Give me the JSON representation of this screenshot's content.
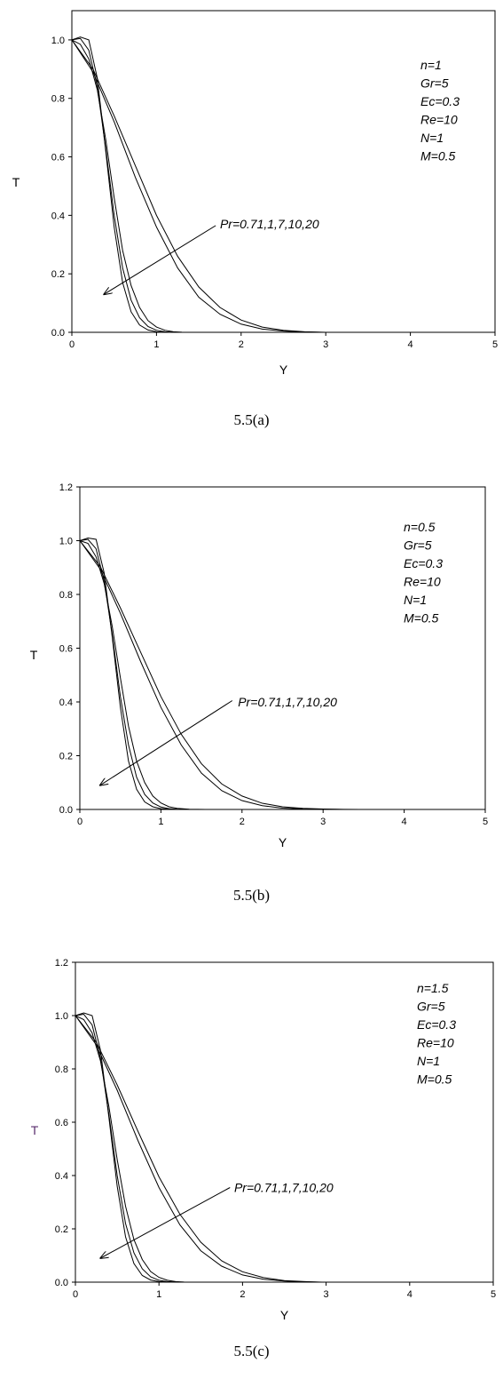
{
  "chart_data": [
    {
      "type": "line",
      "caption": "5.5(a)",
      "xlabel": "Y",
      "ylabel": "T",
      "xlim": [
        0,
        5
      ],
      "ylim": [
        0,
        1.1
      ],
      "xticks": [
        "0",
        "1",
        "2",
        "3",
        "4",
        "5"
      ],
      "yticks": [
        "0.0",
        "0.2",
        "0.4",
        "0.6",
        "0.8",
        "1.0"
      ],
      "ytick_values": [
        0,
        0.2,
        0.4,
        0.6,
        0.8,
        1.0
      ],
      "ylabel_color": "#000000",
      "params": [
        "n=1",
        "Gr=5",
        "Ec=0.3",
        "Re=10",
        "N=1",
        "M=0.5"
      ],
      "annotation": {
        "text": "Pr=0.71,1,7,10,20",
        "text_at": [
          1.75,
          0.37
        ],
        "arrow_from": [
          1.7,
          0.365
        ],
        "arrow_to": [
          0.38,
          0.13
        ]
      },
      "series": [
        {
          "x": [
            0,
            0.25,
            0.5,
            0.75,
            1.0,
            1.25,
            1.5,
            1.75,
            2.0,
            2.25,
            2.5,
            2.75,
            3.0
          ],
          "values": [
            1.0,
            0.9,
            0.74,
            0.57,
            0.4,
            0.26,
            0.155,
            0.085,
            0.042,
            0.018,
            0.007,
            0.002,
            0.0
          ]
        },
        {
          "x": [
            0,
            0.25,
            0.5,
            0.75,
            1.0,
            1.25,
            1.5,
            1.75,
            2.0,
            2.25,
            2.5,
            2.75,
            2.95
          ],
          "values": [
            1.0,
            0.89,
            0.72,
            0.53,
            0.36,
            0.22,
            0.12,
            0.062,
            0.028,
            0.011,
            0.004,
            0.001,
            0.0
          ]
        },
        {
          "x": [
            0,
            0.1,
            0.2,
            0.3,
            0.4,
            0.5,
            0.6,
            0.7,
            0.8,
            0.9,
            1.0,
            1.1,
            1.2,
            1.3,
            1.4
          ],
          "values": [
            1.0,
            0.985,
            0.935,
            0.83,
            0.66,
            0.46,
            0.28,
            0.16,
            0.085,
            0.04,
            0.018,
            0.007,
            0.002,
            0.0005,
            0.0
          ]
        },
        {
          "x": [
            0,
            0.1,
            0.2,
            0.3,
            0.4,
            0.5,
            0.6,
            0.7,
            0.8,
            0.9,
            1.0,
            1.1,
            1.2,
            1.3
          ],
          "values": [
            1.0,
            1.005,
            0.965,
            0.84,
            0.63,
            0.4,
            0.22,
            0.11,
            0.05,
            0.02,
            0.007,
            0.002,
            0.0005,
            0.0
          ]
        },
        {
          "x": [
            0,
            0.1,
            0.2,
            0.3,
            0.4,
            0.5,
            0.6,
            0.7,
            0.8,
            0.9,
            1.0,
            1.1,
            1.2
          ],
          "values": [
            1.0,
            1.01,
            1.0,
            0.87,
            0.62,
            0.36,
            0.17,
            0.07,
            0.025,
            0.008,
            0.002,
            0.0005,
            0.0
          ]
        }
      ]
    },
    {
      "type": "line",
      "caption": "5.5(b)",
      "xlabel": "Y",
      "ylabel": "T",
      "xlim": [
        0,
        5
      ],
      "ylim": [
        0,
        1.2
      ],
      "xticks": [
        "0",
        "1",
        "2",
        "3",
        "4",
        "5"
      ],
      "yticks": [
        "0.0",
        "0.2",
        "0.4",
        "0.6",
        "0.8",
        "1.0",
        "1.2"
      ],
      "ytick_values": [
        0,
        0.2,
        0.4,
        0.6,
        0.8,
        1.0,
        1.2
      ],
      "ylabel_color": "#000000",
      "params": [
        "n=0.5",
        "Gr=5",
        "Ec=0.3",
        "Re=10",
        "N=1",
        "M=0.5"
      ],
      "annotation": {
        "text": "Pr=0.71,1,7,10,20",
        "text_at": [
          1.95,
          0.4
        ],
        "arrow_from": [
          1.88,
          0.405
        ],
        "arrow_to": [
          0.25,
          0.09
        ]
      },
      "series": [
        {
          "x": [
            0,
            0.25,
            0.5,
            0.75,
            1.0,
            1.25,
            1.5,
            1.75,
            2.0,
            2.25,
            2.5,
            2.75,
            3.0,
            3.25,
            3.45
          ],
          "values": [
            1.0,
            0.905,
            0.75,
            0.585,
            0.42,
            0.28,
            0.17,
            0.095,
            0.05,
            0.023,
            0.01,
            0.004,
            0.0015,
            0.0004,
            0.0
          ]
        },
        {
          "x": [
            0,
            0.25,
            0.5,
            0.75,
            1.0,
            1.25,
            1.5,
            1.75,
            2.0,
            2.25,
            2.5,
            2.75,
            3.0,
            3.3
          ],
          "values": [
            1.0,
            0.895,
            0.73,
            0.55,
            0.38,
            0.24,
            0.135,
            0.07,
            0.033,
            0.014,
            0.005,
            0.0018,
            0.0005,
            0.0
          ]
        },
        {
          "x": [
            0,
            0.1,
            0.2,
            0.3,
            0.4,
            0.5,
            0.6,
            0.7,
            0.8,
            0.9,
            1.0,
            1.1,
            1.2,
            1.35,
            1.55
          ],
          "values": [
            1.0,
            0.99,
            0.94,
            0.84,
            0.68,
            0.49,
            0.31,
            0.18,
            0.1,
            0.05,
            0.024,
            0.01,
            0.004,
            0.001,
            0.0
          ]
        },
        {
          "x": [
            0,
            0.1,
            0.2,
            0.3,
            0.4,
            0.5,
            0.6,
            0.7,
            0.8,
            0.9,
            1.0,
            1.1,
            1.2,
            1.35
          ],
          "values": [
            1.0,
            1.005,
            0.97,
            0.85,
            0.65,
            0.42,
            0.24,
            0.12,
            0.056,
            0.024,
            0.009,
            0.003,
            0.001,
            0.0
          ]
        },
        {
          "x": [
            0,
            0.1,
            0.2,
            0.3,
            0.4,
            0.5,
            0.6,
            0.7,
            0.8,
            0.9,
            1.0,
            1.1,
            1.25
          ],
          "values": [
            1.0,
            1.01,
            1.005,
            0.88,
            0.64,
            0.38,
            0.18,
            0.075,
            0.028,
            0.01,
            0.003,
            0.001,
            0.0
          ]
        }
      ]
    },
    {
      "type": "line",
      "caption": "5.5(c)",
      "xlabel": "Y",
      "ylabel": "T",
      "xlim": [
        0,
        5
      ],
      "ylim": [
        0,
        1.2
      ],
      "xticks": [
        "0",
        "1",
        "2",
        "3",
        "4",
        "5"
      ],
      "yticks": [
        "0.0",
        "0.2",
        "0.4",
        "0.6",
        "0.8",
        "1.0",
        "1.2"
      ],
      "ytick_values": [
        0,
        0.2,
        0.4,
        0.6,
        0.8,
        1.0,
        1.2
      ],
      "ylabel_color": "#5a2e6e",
      "params": [
        "n=1.5",
        "Gr=5",
        "Ec=0.3",
        "Re=10",
        "N=1",
        "M=0.5"
      ],
      "annotation": {
        "text": "Pr=0.71,1,7,10,20",
        "text_at": [
          1.9,
          0.355
        ],
        "arrow_from": [
          1.85,
          0.355
        ],
        "arrow_to": [
          0.3,
          0.09
        ]
      },
      "series": [
        {
          "x": [
            0,
            0.25,
            0.5,
            0.75,
            1.0,
            1.25,
            1.5,
            1.75,
            2.0,
            2.25,
            2.5,
            2.75,
            2.95
          ],
          "values": [
            1.0,
            0.9,
            0.74,
            0.565,
            0.395,
            0.255,
            0.15,
            0.08,
            0.039,
            0.017,
            0.006,
            0.002,
            0.0
          ]
        },
        {
          "x": [
            0,
            0.25,
            0.5,
            0.75,
            1.0,
            1.25,
            1.5,
            1.75,
            2.0,
            2.25,
            2.5,
            2.75,
            2.9
          ],
          "values": [
            1.0,
            0.89,
            0.72,
            0.53,
            0.355,
            0.215,
            0.118,
            0.06,
            0.027,
            0.011,
            0.004,
            0.001,
            0.0
          ]
        },
        {
          "x": [
            0,
            0.1,
            0.2,
            0.3,
            0.4,
            0.5,
            0.6,
            0.7,
            0.8,
            0.9,
            1.0,
            1.1,
            1.2,
            1.3,
            1.4
          ],
          "values": [
            1.0,
            0.985,
            0.935,
            0.83,
            0.66,
            0.46,
            0.285,
            0.16,
            0.085,
            0.04,
            0.018,
            0.007,
            0.002,
            0.0005,
            0.0
          ]
        },
        {
          "x": [
            0,
            0.1,
            0.2,
            0.3,
            0.4,
            0.5,
            0.6,
            0.7,
            0.8,
            0.9,
            1.0,
            1.1,
            1.2,
            1.3
          ],
          "values": [
            1.0,
            1.005,
            0.965,
            0.84,
            0.63,
            0.4,
            0.22,
            0.11,
            0.05,
            0.02,
            0.007,
            0.002,
            0.0005,
            0.0
          ]
        },
        {
          "x": [
            0,
            0.1,
            0.2,
            0.3,
            0.4,
            0.5,
            0.6,
            0.7,
            0.8,
            0.9,
            1.0,
            1.1,
            1.2
          ],
          "values": [
            1.0,
            1.01,
            1.0,
            0.87,
            0.62,
            0.36,
            0.17,
            0.07,
            0.025,
            0.008,
            0.002,
            0.0005,
            0.0
          ]
        }
      ]
    }
  ]
}
